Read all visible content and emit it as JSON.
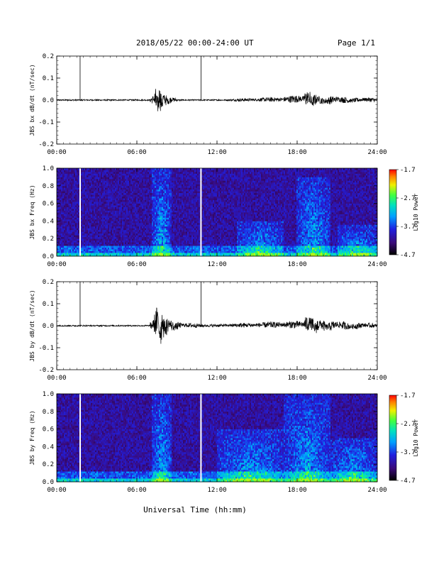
{
  "header": {
    "date_range": "2018/05/22  00:00-24:00 UT",
    "page": "Page 1/1"
  },
  "x_axis_title": "Universal Time (hh:mm)",
  "colors": {
    "trace": "#000000",
    "background": "#ffffff",
    "spectrogram_low": "#000000",
    "spectrogram_mid": "#3a17c0",
    "spectrogram_high": "#ff0000"
  },
  "chart_data": [
    {
      "type": "line",
      "ylabel": "JBS bx dB/dt (nT/sec)",
      "xlim": [
        0,
        24
      ],
      "ylim": [
        -0.2,
        0.2
      ],
      "x_ticks": [
        "00:00",
        "06:00",
        "12:00",
        "18:00",
        "24:00"
      ],
      "y_ticks": [
        "-0.2",
        "-0.1",
        "0.0",
        "0.1",
        "0.2"
      ],
      "markers_hours": [
        1.75,
        10.8
      ],
      "series": [
        {
          "x": [
            0,
            1.75,
            3,
            5,
            7,
            7.3,
            7.55,
            7.7,
            7.85,
            8.0,
            8.3,
            8.6,
            9,
            11,
            13,
            15,
            17,
            18.5,
            18.85,
            19.1,
            19.5,
            20,
            21,
            22,
            23,
            24
          ],
          "values": [
            0,
            0,
            0,
            0,
            0,
            0.02,
            -0.08,
            0.07,
            -0.05,
            0.03,
            -0.02,
            0.01,
            0,
            0,
            0,
            0.005,
            0.01,
            0.02,
            0.045,
            -0.035,
            0.02,
            -0.02,
            0.015,
            -0.01,
            0.01,
            0
          ]
        }
      ]
    },
    {
      "type": "heatmap",
      "ylabel": "JBS bx Freq (Hz)",
      "colorbar_label": "Log10 Power",
      "colorbar_ticks": [
        "-1.7",
        "-2.7",
        "-3.7",
        "-4.7"
      ],
      "color_range": [
        -4.7,
        -1.7
      ],
      "xlim": [
        0,
        24
      ],
      "ylim": [
        0.0,
        1.0
      ],
      "x_ticks": [
        "00:00",
        "06:00",
        "12:00",
        "18:00",
        "24:00"
      ],
      "y_ticks": [
        "0.0",
        "0.2",
        "0.4",
        "0.6",
        "0.8",
        "1.0"
      ],
      "gaps_hours": [
        1.75,
        10.8
      ],
      "bursts": [
        {
          "start": 7.1,
          "end": 8.6,
          "max_freq": 1.0
        },
        {
          "start": 13.5,
          "end": 17.0,
          "max_freq": 0.4
        },
        {
          "start": 18.0,
          "end": 20.5,
          "max_freq": 0.9
        },
        {
          "start": 21.0,
          "end": 24.0,
          "max_freq": 0.35
        }
      ]
    },
    {
      "type": "line",
      "ylabel": "JBS by dB/dt (nT/sec)",
      "xlim": [
        0,
        24
      ],
      "ylim": [
        -0.2,
        0.2
      ],
      "x_ticks": [
        "00:00",
        "06:00",
        "12:00",
        "18:00",
        "24:00"
      ],
      "y_ticks": [
        "-0.2",
        "-0.1",
        "0.0",
        "0.1",
        "0.2"
      ],
      "markers_hours": [
        1.75,
        10.8
      ],
      "series": [
        {
          "x": [
            0,
            1.75,
            3,
            5,
            7,
            7.3,
            7.6,
            7.75,
            7.9,
            8.1,
            8.4,
            8.8,
            9.3,
            11,
            13,
            15,
            17,
            18.5,
            19.0,
            19.3,
            19.7,
            20.2,
            21,
            22,
            23,
            24
          ],
          "values": [
            0,
            0,
            0,
            0,
            0,
            0.03,
            0.09,
            -0.11,
            0.07,
            -0.05,
            0.03,
            -0.02,
            0.01,
            0,
            0.005,
            0.01,
            0.015,
            0.02,
            0.045,
            -0.04,
            0.03,
            -0.025,
            0.02,
            -0.015,
            0.01,
            0
          ]
        }
      ]
    },
    {
      "type": "heatmap",
      "ylabel": "JBS by Freq (Hz)",
      "colorbar_label": "Log10 Power",
      "colorbar_ticks": [
        "-1.7",
        "-2.7",
        "-3.7",
        "-4.7"
      ],
      "color_range": [
        -4.7,
        -1.7
      ],
      "xlim": [
        0,
        24
      ],
      "ylim": [
        0.0,
        1.0
      ],
      "x_ticks": [
        "00:00",
        "06:00",
        "12:00",
        "18:00",
        "24:00"
      ],
      "y_ticks": [
        "0.0",
        "0.2",
        "0.4",
        "0.6",
        "0.8",
        "1.0"
      ],
      "gaps_hours": [
        1.75,
        10.8
      ],
      "bursts": [
        {
          "start": 7.1,
          "end": 8.6,
          "max_freq": 1.0
        },
        {
          "start": 12.0,
          "end": 17.0,
          "max_freq": 0.6
        },
        {
          "start": 17.0,
          "end": 20.5,
          "max_freq": 1.0
        },
        {
          "start": 20.5,
          "end": 24.0,
          "max_freq": 0.5
        }
      ]
    }
  ]
}
